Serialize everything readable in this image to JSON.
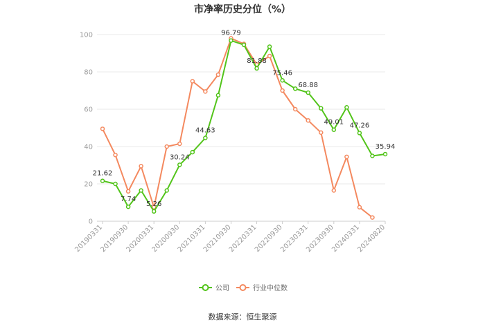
{
  "chart_data": {
    "type": "line",
    "title": "市净率历史分位（%）",
    "ylim": [
      0,
      100
    ],
    "yticks": [
      0,
      20,
      40,
      60,
      80,
      100
    ],
    "xticks": [
      "20190331",
      "20190930",
      "20200331",
      "20200930",
      "20210331",
      "20210930",
      "20220331",
      "20220930",
      "20230331",
      "20230930",
      "20240331",
      "20240820"
    ],
    "x": [
      "20190331",
      "20190630",
      "20190930",
      "20191231",
      "20200331",
      "20200630",
      "20200930",
      "20201231",
      "20210331",
      "20210630",
      "20210930",
      "20211231",
      "20220331",
      "20220630",
      "20220930",
      "20221231",
      "20230331",
      "20230630",
      "20230930",
      "20231231",
      "20240331",
      "20240630",
      "20240820"
    ],
    "series": [
      {
        "name": "公司",
        "color": "#52c41a",
        "values": [
          21.62,
          20.0,
          7.74,
          16.5,
          5.26,
          16.5,
          30.24,
          37.0,
          44.63,
          67.5,
          96.79,
          94.5,
          81.88,
          93.5,
          75.46,
          71.0,
          68.88,
          60.5,
          49.01,
          61.0,
          47.26,
          35.0,
          35.94
        ]
      },
      {
        "name": "行业中位数",
        "color": "#f4895f",
        "values": [
          49.5,
          35.5,
          16.0,
          29.5,
          7.5,
          40.0,
          41.5,
          75.0,
          69.5,
          78.5,
          98.0,
          95.0,
          84.0,
          88.5,
          70.0,
          60.0,
          54.0,
          47.5,
          16.5,
          34.5,
          7.5,
          2.0,
          null
        ]
      }
    ],
    "data_labels": [
      {
        "index": 0,
        "text": "21.62"
      },
      {
        "index": 2,
        "text": "7.74"
      },
      {
        "index": 4,
        "text": "5.26"
      },
      {
        "index": 6,
        "text": "30.24"
      },
      {
        "index": 8,
        "text": "44.63"
      },
      {
        "index": 10,
        "text": "96.79"
      },
      {
        "index": 12,
        "text": "81.88"
      },
      {
        "index": 14,
        "text": "75.46"
      },
      {
        "index": 16,
        "text": "68.88"
      },
      {
        "index": 18,
        "text": "49.01"
      },
      {
        "index": 20,
        "text": "47.26"
      },
      {
        "index": 22,
        "text": "35.94"
      }
    ],
    "legend_position": "bottom",
    "grid": true
  },
  "legend": {
    "company_label": "公司",
    "industry_label": "行业中位数"
  },
  "source": "数据来源：恒生聚源"
}
